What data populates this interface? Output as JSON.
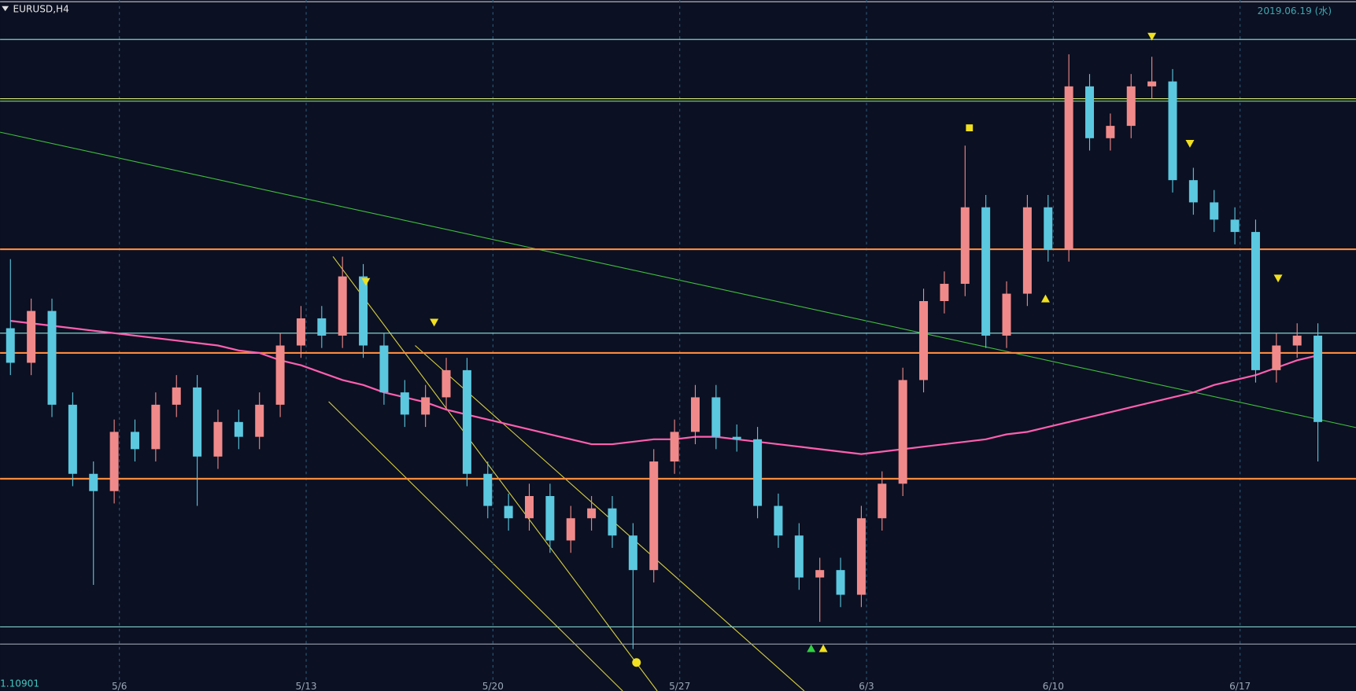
{
  "chart_data": {
    "type": "candlestick",
    "title": "EURUSD,H4",
    "date_label": "2019.06.19 (水)",
    "price_label": 1.10901,
    "ylim": [
      1.109,
      1.137
    ],
    "categories": [
      null,
      null,
      null,
      null,
      null,
      "5/6",
      null,
      null,
      null,
      null,
      null,
      null,
      null,
      null,
      "5/13",
      null,
      null,
      null,
      null,
      null,
      null,
      null,
      null,
      "5/20",
      null,
      null,
      null,
      null,
      null,
      null,
      null,
      null,
      "5/27",
      null,
      null,
      null,
      null,
      null,
      null,
      null,
      null,
      "6/3",
      null,
      null,
      null,
      null,
      null,
      null,
      null,
      null,
      "6/10",
      null,
      null,
      null,
      null,
      null,
      null,
      null,
      null,
      "6/17",
      null,
      null,
      null,
      null
    ],
    "up_color": "#f08a8a",
    "down_color": "#5bc8e0",
    "open": [
      1.1237,
      1.1223,
      1.1244,
      1.1206,
      1.1178,
      1.1171,
      1.1195,
      1.1188,
      1.1206,
      1.1213,
      1.1185,
      1.1199,
      1.1193,
      1.1206,
      1.123,
      1.1241,
      1.1234,
      1.1258,
      1.123,
      1.1211,
      1.1202,
      1.1209,
      1.122,
      1.1178,
      1.1165,
      1.116,
      1.1169,
      1.1151,
      1.116,
      1.1164,
      1.1153,
      1.1139,
      1.1183,
      1.1195,
      1.1209,
      1.1193,
      1.1192,
      1.1165,
      1.1153,
      1.1136,
      1.1139,
      1.1129,
      1.116,
      1.1174,
      1.1216,
      1.1248,
      1.1255,
      1.1286,
      1.1234,
      1.1251,
      1.1286,
      1.1269,
      1.1335,
      1.1314,
      1.1319,
      1.1335,
      1.1337,
      1.1297,
      1.1288,
      1.1281,
      1.1276,
      1.122,
      1.123,
      1.1234
    ],
    "high": [
      1.1265,
      1.1249,
      1.1249,
      1.1211,
      1.1183,
      1.12,
      1.12,
      1.1211,
      1.1218,
      1.1218,
      1.1204,
      1.1204,
      1.1211,
      1.1235,
      1.1246,
      1.1246,
      1.1266,
      1.1263,
      1.1235,
      1.1216,
      1.1214,
      1.1225,
      1.1225,
      1.1183,
      1.117,
      1.1174,
      1.1174,
      1.1165,
      1.1169,
      1.1169,
      1.1158,
      1.1188,
      1.12,
      1.1214,
      1.1214,
      1.1198,
      1.1197,
      1.117,
      1.1158,
      1.1144,
      1.1144,
      1.1165,
      1.1179,
      1.1221,
      1.1253,
      1.126,
      1.1311,
      1.1291,
      1.1256,
      1.1291,
      1.1291,
      1.1348,
      1.134,
      1.1324,
      1.134,
      1.1347,
      1.1342,
      1.1302,
      1.1293,
      1.1286,
      1.1281,
      1.1235,
      1.1239,
      1.1239
    ],
    "low": [
      1.1218,
      1.1218,
      1.1201,
      1.1173,
      1.1133,
      1.1166,
      1.1183,
      1.1183,
      1.1201,
      1.1165,
      1.118,
      1.1188,
      1.1188,
      1.1201,
      1.1225,
      1.1229,
      1.1229,
      1.1225,
      1.1206,
      1.1197,
      1.1197,
      1.1204,
      1.1173,
      1.116,
      1.1155,
      1.1155,
      1.1146,
      1.1146,
      1.1155,
      1.1148,
      1.1107,
      1.1134,
      1.1178,
      1.119,
      1.1188,
      1.1187,
      1.116,
      1.1148,
      1.1131,
      1.1118,
      1.1124,
      1.1124,
      1.1155,
      1.1169,
      1.1211,
      1.1243,
      1.125,
      1.1229,
      1.1229,
      1.1246,
      1.1264,
      1.1264,
      1.1309,
      1.1309,
      1.1314,
      1.133,
      1.1292,
      1.1283,
      1.1276,
      1.1271,
      1.1215,
      1.1215,
      1.1225,
      1.1183
    ],
    "close": [
      1.1223,
      1.1244,
      1.1206,
      1.1178,
      1.1171,
      1.1195,
      1.1188,
      1.1206,
      1.1213,
      1.1185,
      1.1199,
      1.1193,
      1.1206,
      1.123,
      1.1241,
      1.1234,
      1.1258,
      1.123,
      1.1211,
      1.1202,
      1.1209,
      1.122,
      1.1178,
      1.1165,
      1.116,
      1.1169,
      1.1151,
      1.116,
      1.1164,
      1.1153,
      1.1139,
      1.1183,
      1.1195,
      1.1209,
      1.1193,
      1.1192,
      1.1165,
      1.1153,
      1.1136,
      1.1139,
      1.1129,
      1.116,
      1.1174,
      1.1216,
      1.1248,
      1.1255,
      1.1286,
      1.1234,
      1.1251,
      1.1286,
      1.1269,
      1.1335,
      1.1314,
      1.1319,
      1.1335,
      1.1337,
      1.1297,
      1.1288,
      1.1281,
      1.1276,
      1.122,
      1.123,
      1.1234,
      1.1199
    ],
    "series": [
      {
        "color": "#ff5fb0",
        "values": [
          1.124,
          1.1239,
          1.1238,
          1.1237,
          1.1236,
          1.1235,
          1.1234,
          1.1233,
          1.1232,
          1.1231,
          1.123,
          1.1228,
          1.1227,
          1.1224,
          1.1222,
          1.1219,
          1.1216,
          1.1214,
          1.1211,
          1.1209,
          1.1207,
          1.1204,
          1.1202,
          1.12,
          1.1198,
          1.1196,
          1.1194,
          1.1192,
          1.119,
          1.119,
          1.1191,
          1.1192,
          1.1192,
          1.1193,
          1.1193,
          1.1192,
          1.1191,
          1.119,
          1.1189,
          1.1188,
          1.1187,
          1.1186,
          1.1187,
          1.1188,
          1.1189,
          1.119,
          1.1191,
          1.1192,
          1.1194,
          1.1195,
          1.1197,
          1.1199,
          1.1201,
          1.1203,
          1.1205,
          1.1207,
          1.1209,
          1.1211,
          1.1214,
          1.1216,
          1.1218,
          1.1221,
          1.1224,
          1.1226
        ]
      }
    ],
    "hlines": [
      {
        "value": 1.1354,
        "color": "#8fe8e0"
      },
      {
        "value": 1.133,
        "color": "#d8e87a"
      },
      {
        "value": 1.1329,
        "color": "#7fd86a"
      },
      {
        "value": 1.1269,
        "color": "#ff8a3c"
      },
      {
        "value": 1.1235,
        "color": "#8fe8e0"
      },
      {
        "value": 1.1227,
        "color": "#ff8a3c"
      },
      {
        "value": 1.1176,
        "color": "#ff8a3c"
      },
      {
        "value": 1.1116,
        "color": "#8fe8e0"
      },
      {
        "value": 1.1109,
        "color": "#9aa0b0"
      }
    ]
  }
}
